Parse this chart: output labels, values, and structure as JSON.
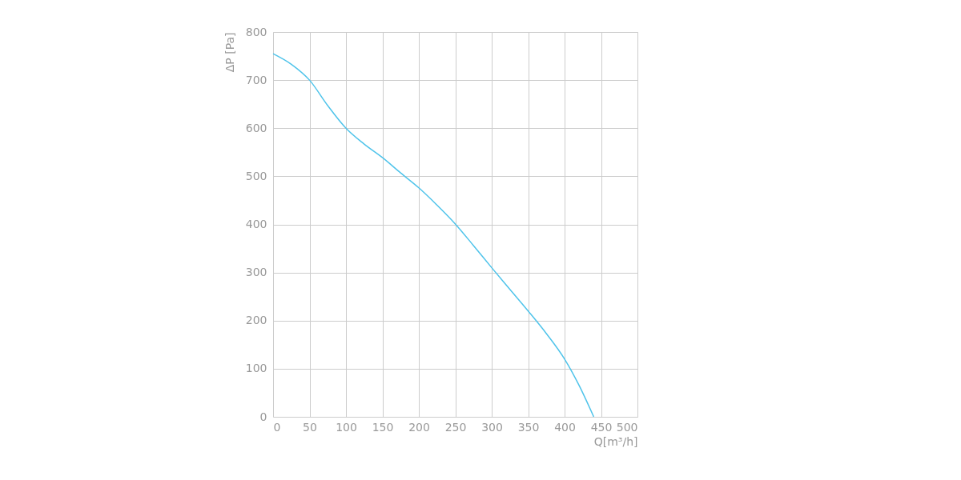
{
  "chart_data": {
    "type": "line",
    "xlabel": "Q[m³/h]",
    "ylabel": "ΔP [Pa]",
    "x": [
      0,
      25,
      50,
      75,
      100,
      125,
      150,
      175,
      200,
      225,
      250,
      275,
      300,
      325,
      350,
      375,
      400,
      420,
      440
    ],
    "series": [
      {
        "color": "#4ec3ea",
        "values": [
          755,
          733,
          700,
          647,
          600,
          567,
          539,
          507,
          476,
          440,
          401,
          356,
          310,
          265,
          220,
          173,
          120,
          65,
          0
        ]
      }
    ],
    "xlim": [
      0,
      500
    ],
    "xticks": [
      0,
      50,
      100,
      150,
      200,
      250,
      300,
      350,
      400,
      450,
      500
    ],
    "ylim": [
      0,
      800
    ],
    "yticks": [
      0,
      100,
      200,
      300,
      400,
      500,
      600,
      700,
      800
    ],
    "grid": true,
    "marker": "none",
    "line_style": "solid"
  }
}
